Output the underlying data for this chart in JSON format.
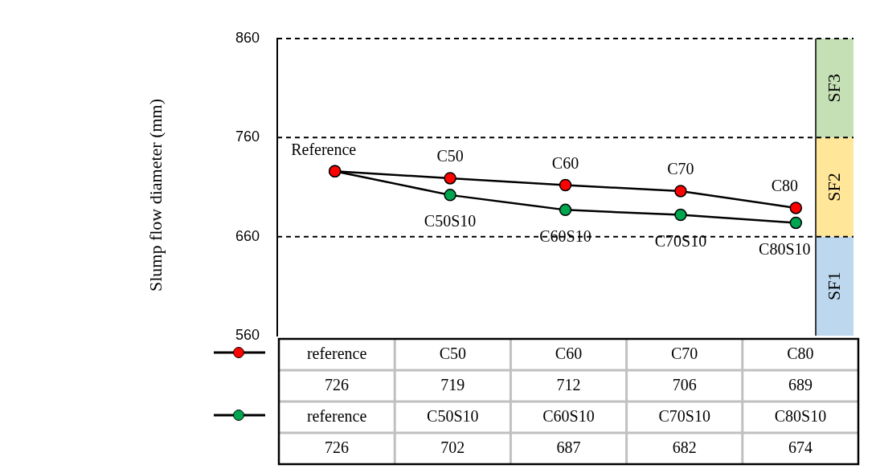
{
  "chart_data": {
    "type": "line",
    "ylabel": "Slump flow diameter (mm)",
    "categories": [
      null,
      null,
      null,
      null,
      null
    ],
    "series": [
      {
        "color": "#ff0000",
        "values": [
          726,
          719,
          712,
          706,
          689
        ]
      },
      {
        "color": "#00a550",
        "values": [
          726,
          702,
          687,
          682,
          674
        ]
      }
    ],
    "ylim": [
      560,
      860
    ],
    "yticks": [
      560,
      660,
      760,
      860
    ],
    "grid": false,
    "legend": false,
    "marker": "circle",
    "line_style": "solid",
    "data_labels": true,
    "tick_labels": "y",
    "ref_lines": [
      {
        "axis": "y",
        "value": 660,
        "line_style": "dashed"
      },
      {
        "axis": "y",
        "value": 760,
        "line_style": "dashed"
      }
    ],
    "bands": [
      {
        "axis": "y",
        "from": 560,
        "to": 660,
        "label": "SF1",
        "color": "#bdd7ee"
      },
      {
        "axis": "y",
        "from": 660,
        "to": 760,
        "label": "SF2",
        "color": "#ffe699"
      },
      {
        "axis": "y",
        "from": 760,
        "to": 860,
        "label": "SF3",
        "color": "#c5e0b4"
      }
    ],
    "annotations": [
      "Reference",
      "C50",
      "C60",
      "C70",
      "C80",
      "C50S10",
      "C60S10",
      "C70S10",
      "C80S10",
      "reference",
      "C50",
      "C60",
      "C70",
      "C80",
      "reference",
      "C50S10",
      "C60S10",
      "C70S10",
      "C80S10"
    ]
  }
}
